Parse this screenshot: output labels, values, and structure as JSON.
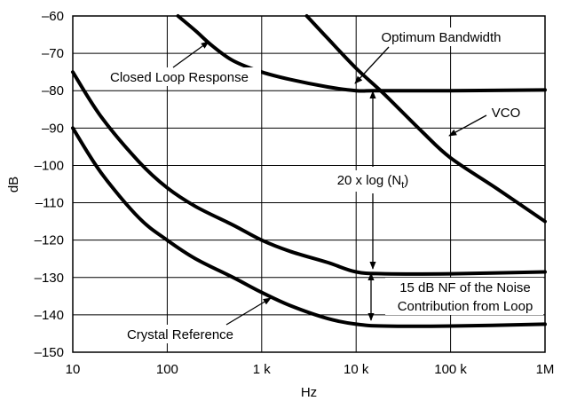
{
  "chart_data": {
    "type": "line",
    "xlabel": "Hz",
    "ylabel": "dB",
    "x_scale": "log",
    "xlim": [
      10,
      1000000
    ],
    "ylim": [
      -150,
      -60
    ],
    "grid": true,
    "x_ticks": [
      {
        "value": 10,
        "label": "10"
      },
      {
        "value": 100,
        "label": "100"
      },
      {
        "value": 1000,
        "label": "1 k"
      },
      {
        "value": 10000,
        "label": "10 k"
      },
      {
        "value": 100000,
        "label": "100 k"
      },
      {
        "value": 1000000,
        "label": "1M"
      }
    ],
    "y_ticks": [
      {
        "value": -60,
        "label": "–60"
      },
      {
        "value": -70,
        "label": "–70"
      },
      {
        "value": -80,
        "label": "–80"
      },
      {
        "value": -90,
        "label": "–90"
      },
      {
        "value": -100,
        "label": "–100"
      },
      {
        "value": -110,
        "label": "–110"
      },
      {
        "value": -120,
        "label": "–120"
      },
      {
        "value": -130,
        "label": "–130"
      },
      {
        "value": -140,
        "label": "–140"
      },
      {
        "value": -150,
        "label": "–150"
      }
    ],
    "series": [
      {
        "key": "vco",
        "x": [
          3000,
          5000,
          10000,
          20000,
          50000,
          100000,
          300000,
          1000000
        ],
        "y": [
          -60,
          -66,
          -74,
          -81,
          -91,
          -98,
          -106,
          -115
        ]
      },
      {
        "key": "closed-loop",
        "x": [
          130,
          200,
          300,
          500,
          1000,
          2000,
          5000,
          10000,
          15000,
          30000,
          100000,
          1000000
        ],
        "y": [
          -60,
          -64,
          -68,
          -72,
          -75,
          -77,
          -79,
          -80,
          -80,
          -80,
          -80,
          -79.8
        ]
      },
      {
        "key": "upper-loop-noise",
        "x": [
          10,
          20,
          50,
          100,
          200,
          500,
          1000,
          2000,
          5000,
          10000,
          20000,
          100000,
          1000000
        ],
        "y": [
          -75,
          -87,
          -99,
          -106,
          -111,
          -116,
          -120,
          -123,
          -126,
          -128.5,
          -129,
          -129,
          -128.5
        ]
      },
      {
        "key": "crystal-reference",
        "x": [
          10,
          20,
          50,
          100,
          200,
          500,
          1000,
          2000,
          5000,
          10000,
          20000,
          100000,
          1000000
        ],
        "y": [
          -90,
          -102,
          -114,
          -120,
          -125,
          -130,
          -134,
          -137.5,
          -141,
          -142.5,
          -143,
          -143,
          -142.5
        ]
      }
    ],
    "annotations": {
      "optimum_bandwidth": "Optimum Bandwidth",
      "closed_loop_response": "Closed Loop Response",
      "vco": "VCO",
      "formula_main": "20 x log (N",
      "formula_sub": "t",
      "formula_close": ")",
      "nf_line1": "15 dB NF of the Noise",
      "nf_line2": "Contribution from Loop",
      "crystal_reference": "Crystal Reference"
    }
  }
}
